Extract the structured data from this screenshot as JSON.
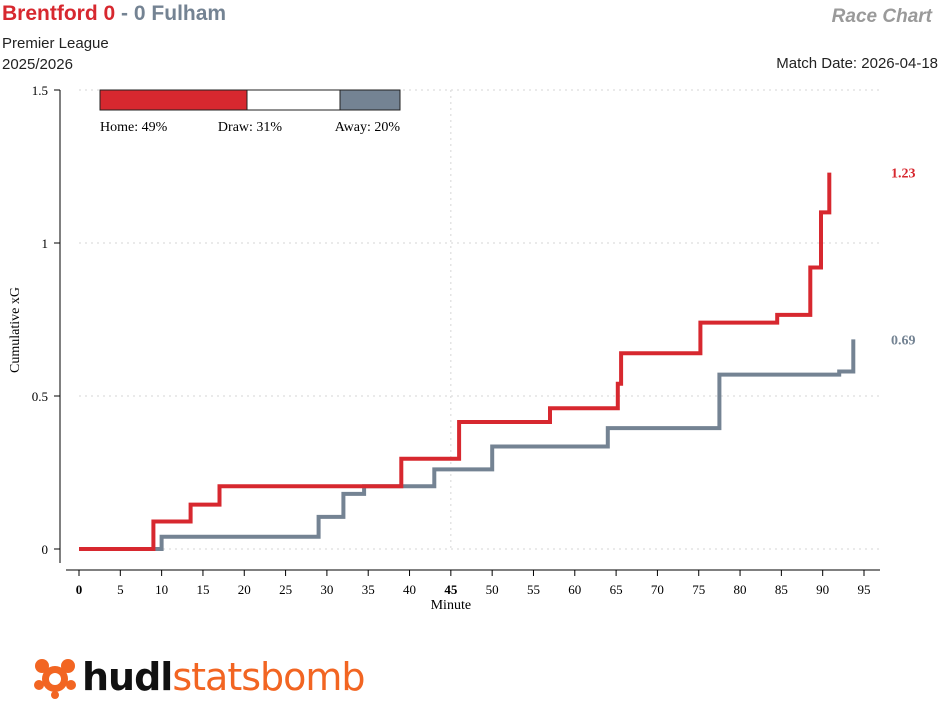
{
  "header": {
    "home_team": "Brentford",
    "home_score": "0",
    "separator": "-",
    "away_score": "0",
    "away_team": "Fulham",
    "competition": "Premier League",
    "season": "2025/2026",
    "chart_name": "Race Chart",
    "match_date": "Match Date: 2026-04-18"
  },
  "colors": {
    "home": "#d7282f",
    "away": "#748393",
    "draw": "#ffffff",
    "brand": "#f26522"
  },
  "logo": {
    "text_a": "hudl",
    "text_b": "statsbomb",
    "icon": "statsbomb-bee-icon"
  },
  "chart_data": {
    "type": "line",
    "step": true,
    "xlabel": "Minute",
    "ylabel": "Cumulative xG",
    "xlim": [
      0,
      95
    ],
    "ylim": [
      0,
      1.5
    ],
    "xticks": [
      0,
      5,
      10,
      15,
      20,
      25,
      30,
      35,
      40,
      45,
      50,
      55,
      60,
      65,
      70,
      75,
      80,
      85,
      90,
      95
    ],
    "xtick_labels": [
      "0",
      "5",
      "10",
      "15",
      "20",
      "25",
      "30",
      "35",
      "40",
      "45",
      "50",
      "55",
      "60",
      "65",
      "70",
      "75",
      "80",
      "85",
      "90",
      "95"
    ],
    "yticks": [
      0,
      0.5,
      1,
      1.5
    ],
    "ytick_labels": [
      "0",
      "0.5",
      "1",
      "1.5"
    ],
    "grid": true,
    "series": [
      {
        "name": "Brentford",
        "color": "#d7282f",
        "end_label": "1.23",
        "points": [
          [
            0,
            0
          ],
          [
            9,
            0
          ],
          [
            9,
            0.09
          ],
          [
            13.5,
            0.09
          ],
          [
            13.5,
            0.145
          ],
          [
            17,
            0.145
          ],
          [
            17,
            0.205
          ],
          [
            39,
            0.205
          ],
          [
            39,
            0.295
          ],
          [
            46,
            0.295
          ],
          [
            46,
            0.415
          ],
          [
            57,
            0.415
          ],
          [
            57,
            0.46
          ],
          [
            65.2,
            0.46
          ],
          [
            65.2,
            0.54
          ],
          [
            65.6,
            0.54
          ],
          [
            65.6,
            0.64
          ],
          [
            75.2,
            0.64
          ],
          [
            75.2,
            0.74
          ],
          [
            84.5,
            0.74
          ],
          [
            84.5,
            0.765
          ],
          [
            88.5,
            0.765
          ],
          [
            88.5,
            0.92
          ],
          [
            89.8,
            0.92
          ],
          [
            89.8,
            1.1
          ],
          [
            90.8,
            1.1
          ],
          [
            90.8,
            1.23
          ]
        ]
      },
      {
        "name": "Fulham",
        "color": "#748393",
        "end_label": "0.69",
        "points": [
          [
            0,
            0
          ],
          [
            10,
            0
          ],
          [
            10,
            0.04
          ],
          [
            29,
            0.04
          ],
          [
            29,
            0.105
          ],
          [
            32,
            0.105
          ],
          [
            32,
            0.18
          ],
          [
            34.5,
            0.18
          ],
          [
            34.5,
            0.205
          ],
          [
            43,
            0.205
          ],
          [
            43,
            0.26
          ],
          [
            50,
            0.26
          ],
          [
            50,
            0.335
          ],
          [
            64,
            0.335
          ],
          [
            64,
            0.395
          ],
          [
            77.5,
            0.395
          ],
          [
            77.5,
            0.57
          ],
          [
            92,
            0.57
          ],
          [
            92,
            0.58
          ],
          [
            93.7,
            0.58
          ],
          [
            93.7,
            0.685
          ]
        ]
      }
    ],
    "outcome_bar": {
      "home_label": "Home: 49%",
      "home": 49,
      "draw_label": "Draw: 31%",
      "draw": 31,
      "away_label": "Away: 20%",
      "away": 20
    }
  }
}
